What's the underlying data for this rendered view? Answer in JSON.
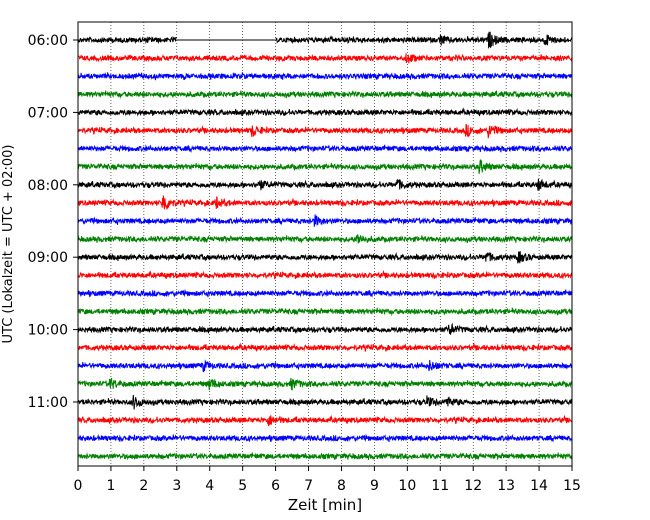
{
  "chart_data": {
    "type": "line",
    "title": "",
    "xlabel": "Zeit  [min]",
    "ylabel": "UTC (Lokalzeit = UTC + 02:00)",
    "xlim": [
      0,
      15
    ],
    "xticks": [
      0,
      1,
      2,
      3,
      4,
      5,
      6,
      7,
      8,
      9,
      10,
      11,
      12,
      13,
      14,
      15
    ],
    "xtick_labels": [
      "0",
      "1",
      "2",
      "3",
      "4",
      "5",
      "6",
      "7",
      "8",
      "9",
      "10",
      "11",
      "12",
      "13",
      "14",
      "15"
    ],
    "ytick_labels": [
      "06:00",
      "07:00",
      "08:00",
      "09:00",
      "10:00",
      "11:00"
    ],
    "grid": "vertical dotted",
    "trace_colors": [
      "#000000",
      "#ff0000",
      "#0000ff",
      "#008000"
    ],
    "trace_start_times": [
      "06:00",
      "06:15",
      "06:30",
      "06:45",
      "07:00",
      "07:15",
      "07:30",
      "07:45",
      "08:00",
      "08:15",
      "08:30",
      "08:45",
      "09:00",
      "09:15",
      "09:30",
      "09:45",
      "10:00",
      "10:15",
      "10:30",
      "10:45",
      "11:00",
      "11:15",
      "11:30",
      "11:45"
    ],
    "data_gaps": [
      {
        "trace": "06:00",
        "from_min": 3.0,
        "to_min": 6.0
      }
    ],
    "events": [
      {
        "trace": "06:00",
        "at_min": 11.0,
        "amplitude": 2.0
      },
      {
        "trace": "06:00",
        "at_min": 12.5,
        "amplitude": 3.0
      },
      {
        "trace": "06:00",
        "at_min": 14.2,
        "amplitude": 2.0
      },
      {
        "trace": "06:15",
        "at_min": 10.0,
        "amplitude": 2.0
      },
      {
        "trace": "07:15",
        "at_min": 5.3,
        "amplitude": 2.0
      },
      {
        "trace": "07:15",
        "at_min": 11.8,
        "amplitude": 2.0
      },
      {
        "trace": "07:15",
        "at_min": 12.5,
        "amplitude": 2.5
      },
      {
        "trace": "07:45",
        "at_min": 12.2,
        "amplitude": 2.5
      },
      {
        "trace": "08:00",
        "at_min": 5.5,
        "amplitude": 2.0
      },
      {
        "trace": "08:00",
        "at_min": 9.7,
        "amplitude": 2.0
      },
      {
        "trace": "08:00",
        "at_min": 14.0,
        "amplitude": 2.0
      },
      {
        "trace": "08:15",
        "at_min": 2.6,
        "amplitude": 4.0
      },
      {
        "trace": "08:15",
        "at_min": 4.2,
        "amplitude": 2.0
      },
      {
        "trace": "08:30",
        "at_min": 7.2,
        "amplitude": 2.0
      },
      {
        "trace": "08:45",
        "at_min": 8.5,
        "amplitude": 2.0
      },
      {
        "trace": "09:00",
        "at_min": 12.4,
        "amplitude": 2.0
      },
      {
        "trace": "09:00",
        "at_min": 13.4,
        "amplitude": 2.0
      },
      {
        "trace": "10:00",
        "at_min": 11.3,
        "amplitude": 2.0
      },
      {
        "trace": "10:30",
        "at_min": 3.8,
        "amplitude": 2.0
      },
      {
        "trace": "10:30",
        "at_min": 10.7,
        "amplitude": 2.0
      },
      {
        "trace": "10:45",
        "at_min": 1.0,
        "amplitude": 2.0
      },
      {
        "trace": "10:45",
        "at_min": 4.0,
        "amplitude": 2.0
      },
      {
        "trace": "10:45",
        "at_min": 6.5,
        "amplitude": 2.0
      },
      {
        "trace": "11:00",
        "at_min": 1.7,
        "amplitude": 2.5
      },
      {
        "trace": "11:00",
        "at_min": 10.6,
        "amplitude": 2.0
      },
      {
        "trace": "11:00",
        "at_min": 11.2,
        "amplitude": 2.0
      },
      {
        "trace": "11:15",
        "at_min": 5.8,
        "amplitude": 2.0
      }
    ]
  }
}
